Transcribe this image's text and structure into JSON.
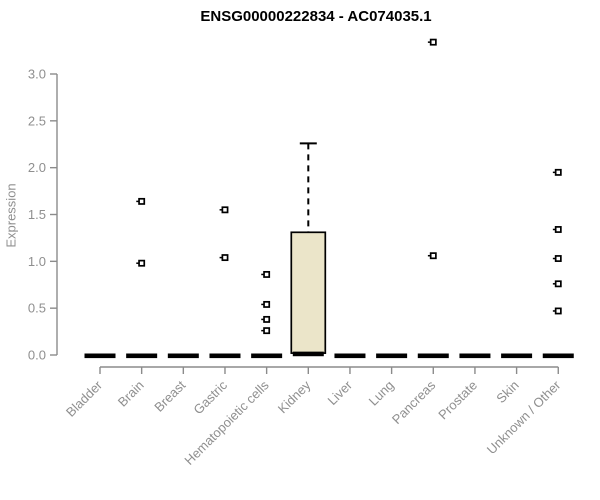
{
  "chart_data": {
    "type": "boxplot",
    "title": "ENSG00000222834 - AC074035.1",
    "ylabel": "Expression",
    "xlabel": "",
    "ylim": [
      0,
      3.0
    ],
    "yticks": [
      0.0,
      0.5,
      1.0,
      1.5,
      2.0,
      2.5,
      3.0
    ],
    "grid": false,
    "legend": false,
    "categories": [
      "Bladder",
      "Brain",
      "Breast",
      "Gastric",
      "Hematopoietic cells",
      "Kidney",
      "Liver",
      "Lung",
      "Pancreas",
      "Prostate",
      "Skin",
      "Unknown / Other"
    ],
    "boxes": [
      {
        "category": "Bladder",
        "median": 0.0,
        "q1": 0.0,
        "q3": 0.0,
        "whisker_low": 0.0,
        "whisker_high": 0.0,
        "outliers": []
      },
      {
        "category": "Brain",
        "median": 0.0,
        "q1": 0.0,
        "q3": 0.0,
        "whisker_low": 0.0,
        "whisker_high": 0.0,
        "outliers": [
          1.64,
          0.98
        ]
      },
      {
        "category": "Breast",
        "median": 0.0,
        "q1": 0.0,
        "q3": 0.0,
        "whisker_low": 0.0,
        "whisker_high": 0.0,
        "outliers": []
      },
      {
        "category": "Gastric",
        "median": 0.0,
        "q1": 0.0,
        "q3": 0.0,
        "whisker_low": 0.0,
        "whisker_high": 0.0,
        "outliers": [
          1.55,
          1.04
        ]
      },
      {
        "category": "Hematopoietic cells",
        "median": 0.0,
        "q1": 0.0,
        "q3": 0.0,
        "whisker_low": 0.0,
        "whisker_high": 0.0,
        "outliers": [
          0.86,
          0.54,
          0.38,
          0.26
        ]
      },
      {
        "category": "Kidney",
        "median": 0.02,
        "q1": 0.02,
        "q3": 1.31,
        "whisker_low": 0.02,
        "whisker_high": 2.26,
        "outliers": []
      },
      {
        "category": "Liver",
        "median": 0.0,
        "q1": 0.0,
        "q3": 0.0,
        "whisker_low": 0.0,
        "whisker_high": 0.0,
        "outliers": []
      },
      {
        "category": "Lung",
        "median": 0.0,
        "q1": 0.0,
        "q3": 0.0,
        "whisker_low": 0.0,
        "whisker_high": 0.0,
        "outliers": []
      },
      {
        "category": "Pancreas",
        "median": 0.0,
        "q1": 0.0,
        "q3": 0.0,
        "whisker_low": 0.0,
        "whisker_high": 0.0,
        "outliers": [
          3.34,
          1.06
        ]
      },
      {
        "category": "Prostate",
        "median": 0.0,
        "q1": 0.0,
        "q3": 0.0,
        "whisker_low": 0.0,
        "whisker_high": 0.0,
        "outliers": []
      },
      {
        "category": "Skin",
        "median": 0.0,
        "q1": 0.0,
        "q3": 0.0,
        "whisker_low": 0.0,
        "whisker_high": 0.0,
        "outliers": []
      },
      {
        "category": "Unknown / Other",
        "median": 0.0,
        "q1": 0.0,
        "q3": 0.0,
        "whisker_low": 0.0,
        "whisker_high": 0.0,
        "outliers": [
          1.95,
          1.34,
          1.03,
          0.76,
          0.47
        ]
      }
    ],
    "colors": {
      "box_fill": "#ebe5c9",
      "box_border": "#000000",
      "median": "#000000",
      "whisker": "#000000",
      "outlier": "#000000",
      "outlier_fill": "#ffffff",
      "axis": "#8b8b8b",
      "labels": "#8f8f8f",
      "title": "#000000"
    }
  }
}
